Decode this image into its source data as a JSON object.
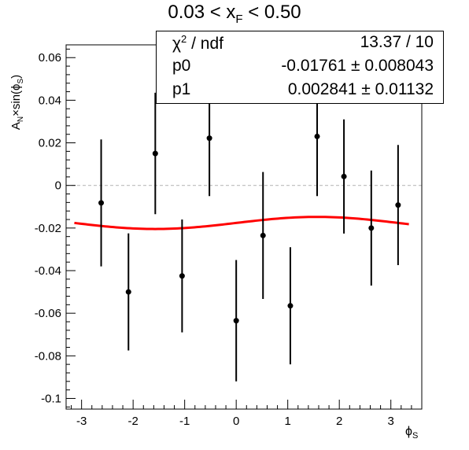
{
  "title": {
    "prefix": "0.03 < x",
    "sub": "F",
    "suffix": " < 0.50"
  },
  "axis_labels": {
    "y": {
      "pre": "A",
      "sub1": "N",
      "mid": "×sin(ϕ",
      "sub2": "S",
      "post": ")"
    },
    "x": {
      "main": "ϕ",
      "sub": "S"
    }
  },
  "stats": {
    "chi2_label_main": "χ",
    "chi2_label_sup": "2",
    "chi2_label_rest": " / ndf",
    "chi2_value": "13.37 / 10",
    "p0_label": "p0",
    "p0_value": "-0.01761 ± 0.008043",
    "p1_label": "p1",
    "p1_value": "0.002841 ± 0.01132"
  },
  "chart_data": {
    "type": "scatter",
    "xlim": [
      -3.3,
      3.6
    ],
    "ylim": [
      -0.105,
      0.066
    ],
    "x_ticks": [
      -3,
      -2,
      -1,
      0,
      1,
      2,
      3
    ],
    "y_ticks": [
      -0.1,
      -0.08,
      -0.06,
      -0.04,
      -0.02,
      0,
      0.02,
      0.04,
      0.06
    ],
    "y_tick_labels": [
      "-0.1",
      "-0.08",
      "-0.06",
      "-0.04",
      "-0.02",
      "0",
      "0.02",
      "0.04",
      "0.06"
    ],
    "x_tick_labels": [
      "-3",
      "-2",
      "-1",
      "0",
      "1",
      "2",
      "3"
    ],
    "series": [
      {
        "x": [
          -2.62,
          -2.09,
          -1.57,
          -1.05,
          -0.52,
          0.0,
          0.52,
          1.05,
          1.57,
          2.09,
          2.62,
          3.14
        ],
        "y": [
          -0.0082,
          -0.05,
          0.015,
          -0.0425,
          0.0222,
          -0.0635,
          -0.0235,
          -0.0565,
          0.023,
          0.0042,
          -0.02,
          -0.0092
        ],
        "err": [
          0.0298,
          0.0275,
          0.0285,
          0.0265,
          0.0272,
          0.0285,
          0.0298,
          0.0275,
          0.028,
          0.0268,
          0.027,
          0.0282
        ]
      }
    ],
    "fit": {
      "p0": -0.01761,
      "p1": 0.002841,
      "x_range": [
        -3.14,
        3.35
      ],
      "color": "#ff0000"
    },
    "reference_line": {
      "y": 0,
      "style": "dashed",
      "color": "#bbbbbb"
    }
  }
}
